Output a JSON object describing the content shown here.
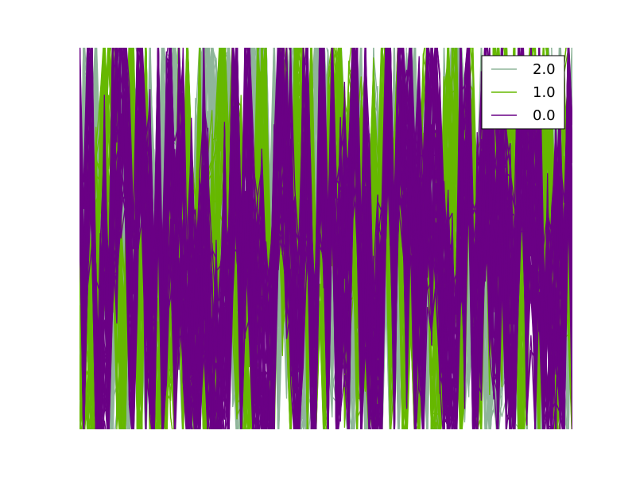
{
  "chart_data": {
    "type": "line",
    "plot_kind": "parallel_coordinates",
    "axes_visible": false,
    "grid": false,
    "legend_position": "upper-right",
    "series": [
      {
        "name": "2.0",
        "color": "#8fb59a",
        "line_count": 50
      },
      {
        "name": "1.0",
        "color": "#66b800",
        "line_count": 50
      },
      {
        "name": "0.0",
        "color": "#6a0085",
        "line_count": 50
      }
    ],
    "dimension_count": 120,
    "ylim": [
      0,
      1
    ]
  }
}
